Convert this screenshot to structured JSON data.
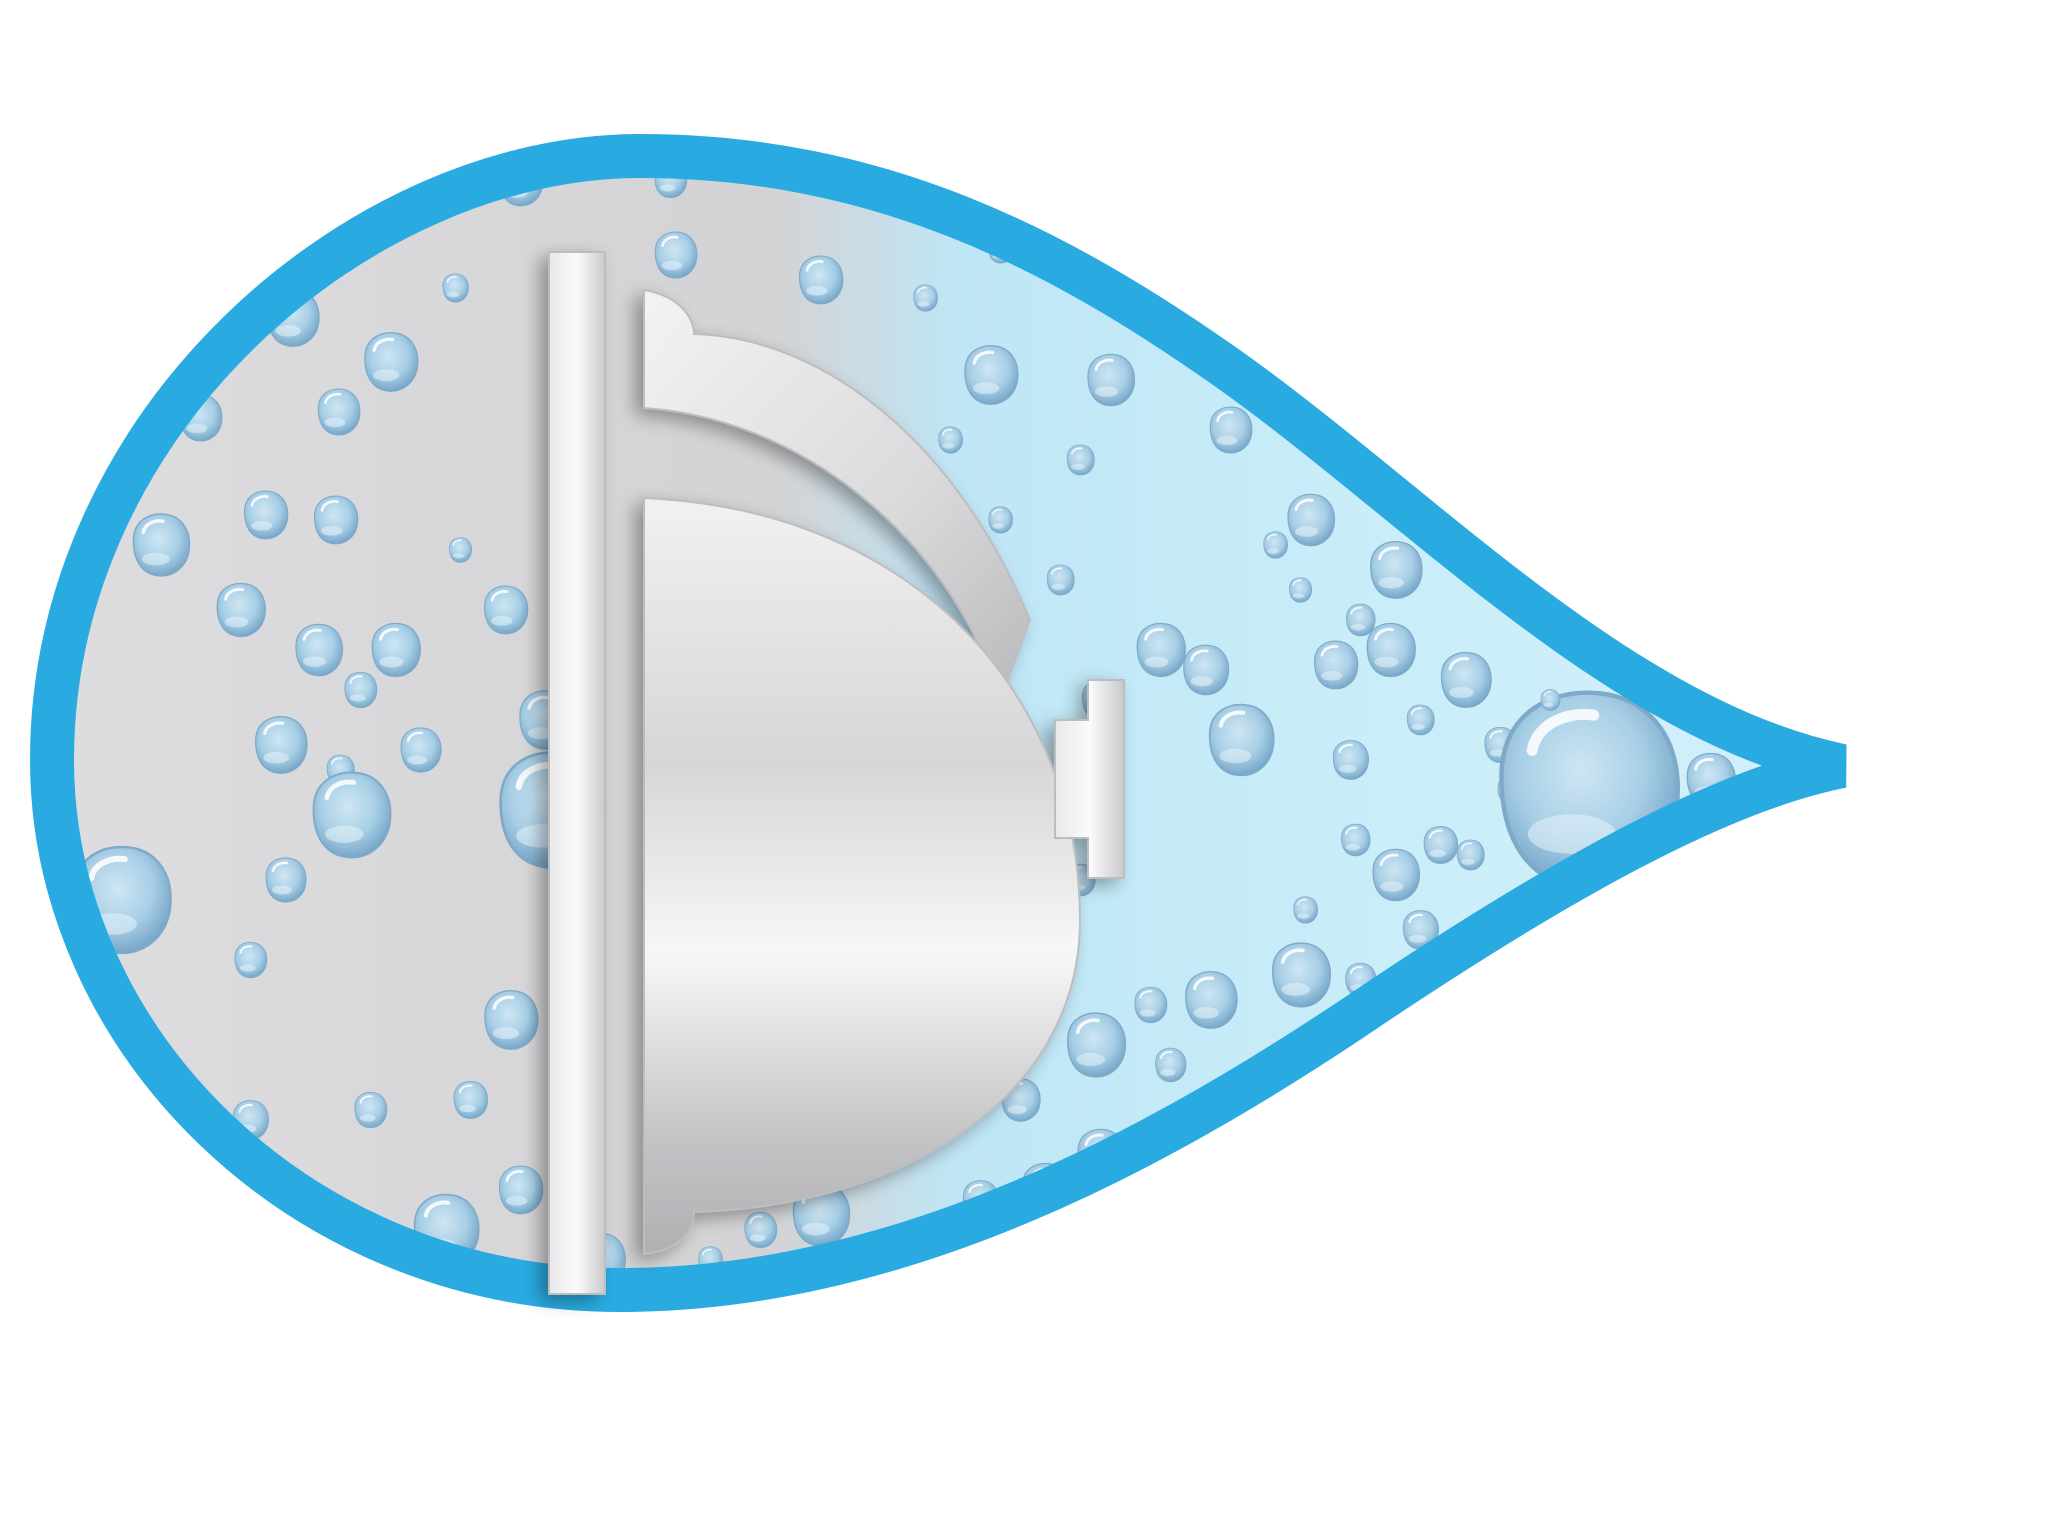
{
  "illustration": {
    "icon": "water-drop-with-hatch-door-icon",
    "colors": {
      "outline_blue": "#29abe2",
      "background": "#ffffff",
      "surface_gray": "#d4d4d6",
      "surface_light_blue": "#b7e6f6",
      "metal_light": "#f2f2f3",
      "metal_dark": "#a8a8ab",
      "droplet_fill": "#a9d1e8",
      "droplet_edge": "#6fa3c6",
      "droplet_highlight": "#ffffff"
    }
  }
}
